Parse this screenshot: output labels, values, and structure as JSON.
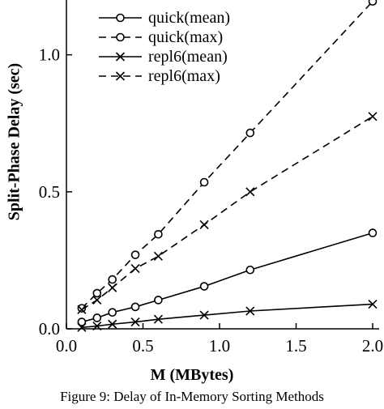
{
  "caption": "Figure 9: Delay of In-Memory Sorting Methods",
  "chart_data": {
    "type": "line",
    "xlabel": "M (MBytes)",
    "ylabel": "Split-Phase Delay (sec)",
    "xlim": [
      0.0,
      2.0
    ],
    "ylim": [
      0.0,
      1.2
    ],
    "xticks": [
      "0.0",
      "0.5",
      "1.0",
      "1.5",
      "2.0"
    ],
    "yticks": [
      "0.0",
      "0.5",
      "1.0"
    ],
    "grid": false,
    "legend_position": "top-left",
    "series": [
      {
        "name": "quick(mean)",
        "marker": "circle",
        "dash": "solid",
        "x": [
          0.1,
          0.2,
          0.3,
          0.45,
          0.6,
          0.9,
          1.2,
          2.0
        ],
        "y": [
          0.025,
          0.04,
          0.06,
          0.08,
          0.105,
          0.155,
          0.215,
          0.35
        ]
      },
      {
        "name": "quick(max)",
        "marker": "circle",
        "dash": "dashed",
        "x": [
          0.1,
          0.2,
          0.3,
          0.45,
          0.6,
          0.9,
          1.2,
          2.0
        ],
        "y": [
          0.075,
          0.13,
          0.18,
          0.27,
          0.345,
          0.535,
          0.715,
          1.195
        ]
      },
      {
        "name": "repl6(mean)",
        "marker": "cross",
        "dash": "solid",
        "x": [
          0.1,
          0.2,
          0.3,
          0.45,
          0.6,
          0.9,
          1.2,
          2.0
        ],
        "y": [
          0.005,
          0.01,
          0.017,
          0.025,
          0.035,
          0.05,
          0.065,
          0.09
        ]
      },
      {
        "name": "repl6(max)",
        "marker": "cross",
        "dash": "dashed",
        "x": [
          0.1,
          0.2,
          0.3,
          0.45,
          0.6,
          0.9,
          1.2,
          2.0
        ],
        "y": [
          0.07,
          0.105,
          0.15,
          0.22,
          0.265,
          0.38,
          0.5,
          0.775
        ]
      }
    ]
  }
}
